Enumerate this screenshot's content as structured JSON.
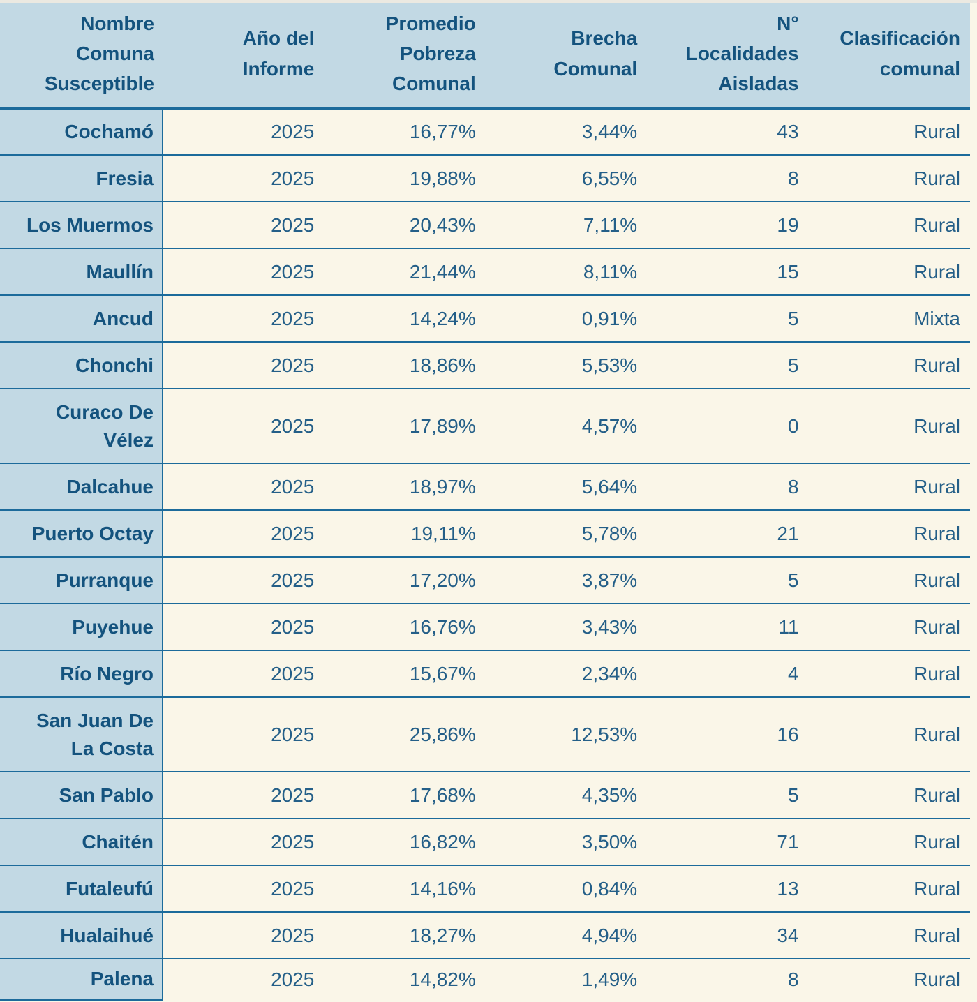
{
  "colors": {
    "header_bg": "#c2d9e4",
    "name_column_bg": "#c2d9e4",
    "data_cell_bg": "#faf6e8",
    "border_blue": "#1c6b9b",
    "header_text": "#14537e",
    "data_text": "#245f88",
    "page_top_strip": "#ebe9e1"
  },
  "chart_data": {
    "type": "table",
    "title": "",
    "columns": [
      "Nombre Comuna Susceptible",
      "Año del Informe",
      "Promedio Pobreza Comunal",
      "Brecha Comunal",
      "N° Localidades Aisladas",
      "Clasificación comunal"
    ],
    "headers_display": [
      "Nombre\nComuna\nSusceptible",
      "Año del\nInforme",
      "Promedio\nPobreza\nComunal",
      "Brecha\nComunal",
      "N°\nLocalidades\nAisladas",
      "Clasificación\ncomunal"
    ],
    "rows": [
      {
        "name": "Cochamó",
        "year": "2025",
        "poverty": "16,77%",
        "gap": "3,44%",
        "isolated": "43",
        "classification": "Rural"
      },
      {
        "name": "Fresia",
        "year": "2025",
        "poverty": "19,88%",
        "gap": "6,55%",
        "isolated": "8",
        "classification": "Rural"
      },
      {
        "name": "Los Muermos",
        "year": "2025",
        "poverty": "20,43%",
        "gap": "7,11%",
        "isolated": "19",
        "classification": "Rural"
      },
      {
        "name": "Maullín",
        "year": "2025",
        "poverty": "21,44%",
        "gap": "8,11%",
        "isolated": "15",
        "classification": "Rural"
      },
      {
        "name": "Ancud",
        "year": "2025",
        "poverty": "14,24%",
        "gap": "0,91%",
        "isolated": "5",
        "classification": "Mixta"
      },
      {
        "name": "Chonchi",
        "year": "2025",
        "poverty": "18,86%",
        "gap": "5,53%",
        "isolated": "5",
        "classification": "Rural"
      },
      {
        "name": "Curaco De\nVélez",
        "year": "2025",
        "poverty": "17,89%",
        "gap": "4,57%",
        "isolated": "0",
        "classification": "Rural"
      },
      {
        "name": "Dalcahue",
        "year": "2025",
        "poverty": "18,97%",
        "gap": "5,64%",
        "isolated": "8",
        "classification": "Rural"
      },
      {
        "name": "Puerto Octay",
        "year": "2025",
        "poverty": "19,11%",
        "gap": "5,78%",
        "isolated": "21",
        "classification": "Rural"
      },
      {
        "name": "Purranque",
        "year": "2025",
        "poverty": "17,20%",
        "gap": "3,87%",
        "isolated": "5",
        "classification": "Rural"
      },
      {
        "name": "Puyehue",
        "year": "2025",
        "poverty": "16,76%",
        "gap": "3,43%",
        "isolated": "11",
        "classification": "Rural"
      },
      {
        "name": "Río Negro",
        "year": "2025",
        "poverty": "15,67%",
        "gap": "2,34%",
        "isolated": "4",
        "classification": "Rural"
      },
      {
        "name": "San Juan De\nLa Costa",
        "year": "2025",
        "poverty": "25,86%",
        "gap": "12,53%",
        "isolated": "16",
        "classification": "Rural"
      },
      {
        "name": "San Pablo",
        "year": "2025",
        "poverty": "17,68%",
        "gap": "4,35%",
        "isolated": "5",
        "classification": "Rural"
      },
      {
        "name": "Chaitén",
        "year": "2025",
        "poverty": "16,82%",
        "gap": "3,50%",
        "isolated": "71",
        "classification": "Rural"
      },
      {
        "name": "Futaleufú",
        "year": "2025",
        "poverty": "14,16%",
        "gap": "0,84%",
        "isolated": "13",
        "classification": "Rural"
      },
      {
        "name": "Hualaihué",
        "year": "2025",
        "poverty": "18,27%",
        "gap": "4,94%",
        "isolated": "34",
        "classification": "Rural"
      },
      {
        "name": "Palena",
        "year": "2025",
        "poverty": "14,82%",
        "gap": "1,49%",
        "isolated": "8",
        "classification": "Rural"
      }
    ]
  }
}
